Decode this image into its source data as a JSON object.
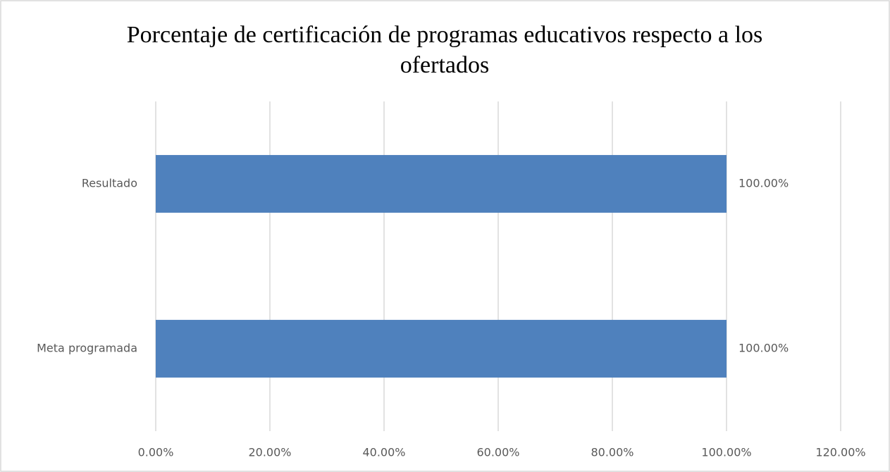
{
  "chart_data": {
    "type": "bar",
    "orientation": "horizontal",
    "title": "Porcentaje de certificación de programas educativos respecto a los ofertados",
    "categories": [
      "Resultado",
      "Meta programada"
    ],
    "values": [
      100,
      100
    ],
    "value_labels": [
      "100.00%",
      "100.00%"
    ],
    "color": "#4f81bd",
    "xlim": [
      0,
      120
    ],
    "xticks": [
      {
        "value": 0,
        "label": "0.00%"
      },
      {
        "value": 20,
        "label": "20.00%"
      },
      {
        "value": 40,
        "label": "40.00%"
      },
      {
        "value": 60,
        "label": "60.00%"
      },
      {
        "value": 80,
        "label": "80.00%"
      },
      {
        "value": 100,
        "label": "100.00%"
      },
      {
        "value": 120,
        "label": "120.00%"
      }
    ],
    "grid": true
  }
}
